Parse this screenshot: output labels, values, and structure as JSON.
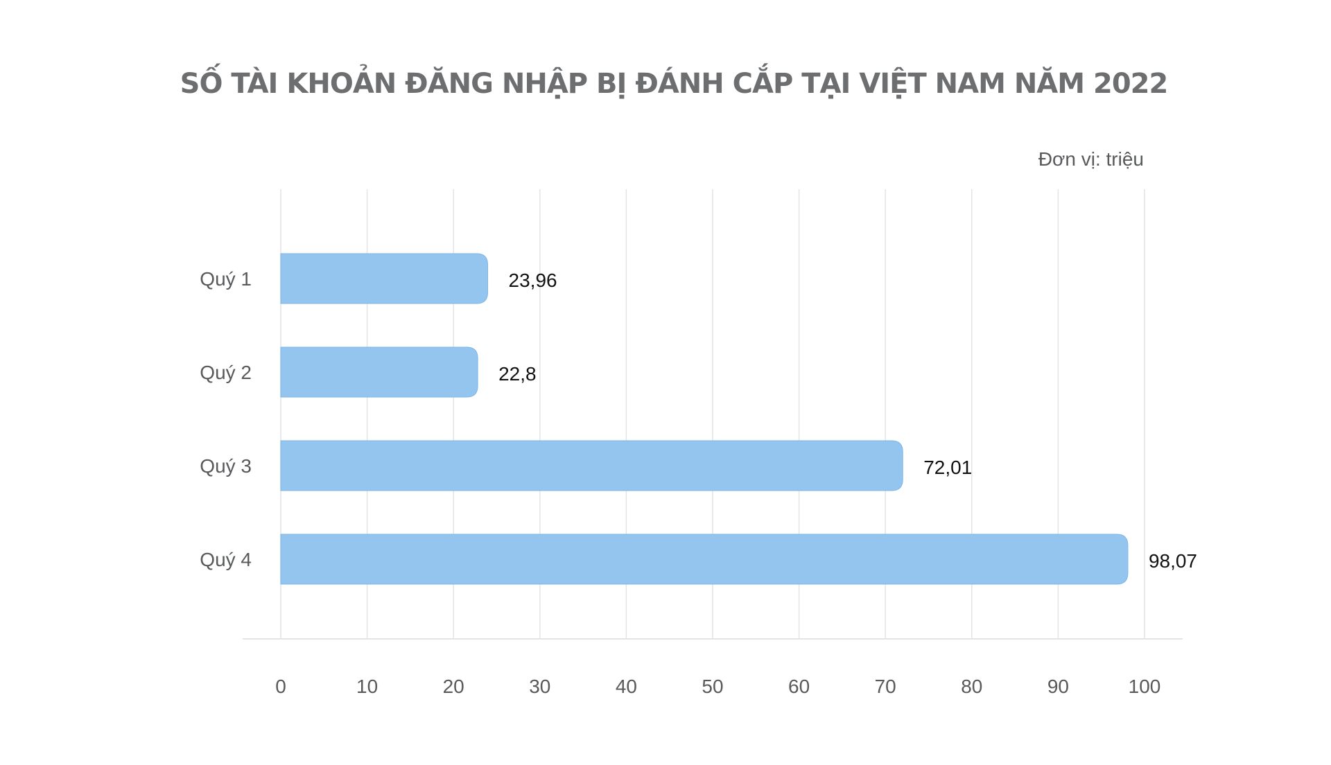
{
  "chart_data": {
    "type": "bar",
    "orientation": "horizontal",
    "title": "SỐ TÀI KHOẢN ĐĂNG NHẬP BỊ ĐÁNH CẮP TẠI VIỆT NAM NĂM 2022",
    "unit_label": "Đơn vị: triệu",
    "categories": [
      "Quý 1",
      "Quý 2",
      "Quý 3",
      "Quý 4"
    ],
    "values": [
      23.96,
      22.8,
      72.01,
      98.07
    ],
    "value_labels": [
      "23,96",
      "22,8",
      "72,01",
      "98,07"
    ],
    "xlim": [
      0,
      100
    ],
    "x_ticks": [
      0,
      10,
      20,
      30,
      40,
      50,
      60,
      70,
      80,
      90,
      100
    ],
    "grid": true,
    "legend": "none",
    "bar_color": "#93c5ef",
    "bar_edge_color": "#7fb6e6"
  }
}
